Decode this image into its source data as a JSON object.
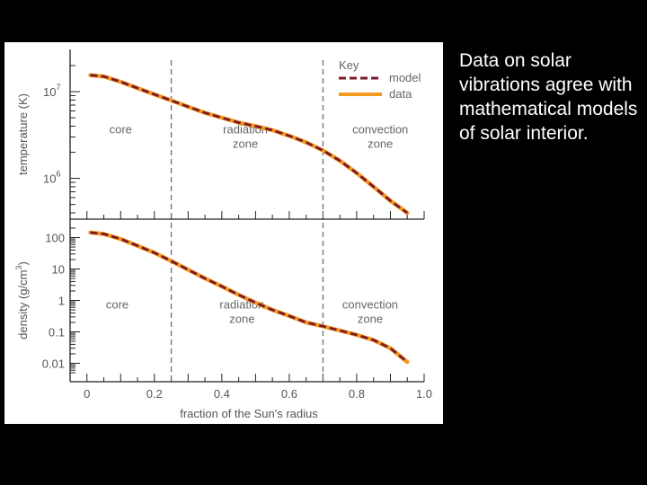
{
  "caption": "Data on solar vibrations agree with mathematical models of solar interior.",
  "colors": {
    "model": "#7a1a2c",
    "data": "#f39a1e",
    "zone_line": "#777777"
  },
  "chart_data": [
    {
      "type": "line",
      "panel": "temperature",
      "ylabel": "temperature (K)",
      "yscale": "log",
      "ylim": [
        400000,
        20000000
      ],
      "xlim": [
        -0.05,
        1.0
      ],
      "ytick_labels": [
        {
          "value": 10000000,
          "base": "10",
          "exp": "7"
        },
        {
          "value": 1000000,
          "base": "10",
          "exp": "6"
        }
      ],
      "zone_boundaries": [
        0.25,
        0.7
      ],
      "zones": [
        {
          "lines": [
            "core"
          ],
          "x": 0.1,
          "y": 3300000
        },
        {
          "lines": [
            "radiation",
            "zone"
          ],
          "x": 0.47,
          "y": 3300000
        },
        {
          "lines": [
            "convection",
            "zone"
          ],
          "x": 0.87,
          "y": 3300000
        }
      ],
      "legend": {
        "title": "Key",
        "entries": [
          "model",
          "data"
        ],
        "placement": "top-right"
      },
      "series": [
        {
          "name": "model",
          "x": [
            0.01,
            0.05,
            0.1,
            0.15,
            0.2,
            0.25,
            0.3,
            0.35,
            0.4,
            0.45,
            0.5,
            0.55,
            0.6,
            0.65,
            0.7,
            0.75,
            0.8,
            0.85,
            0.9,
            0.95
          ],
          "y": [
            15500000,
            15000000,
            13000000,
            11000000,
            9300000,
            7900000,
            6700000,
            5700000,
            5000000,
            4400000,
            4000000,
            3600000,
            3100000,
            2600000,
            2100000,
            1600000,
            1150000,
            800000,
            550000,
            400000
          ]
        },
        {
          "name": "data",
          "x": [
            0.01,
            0.05,
            0.1,
            0.15,
            0.2,
            0.25,
            0.3,
            0.35,
            0.4,
            0.45,
            0.5,
            0.55,
            0.6,
            0.65,
            0.7,
            0.75,
            0.8,
            0.85,
            0.9,
            0.95
          ],
          "y": [
            15500000,
            15000000,
            13000000,
            11000000,
            9300000,
            7900000,
            6700000,
            5700000,
            5000000,
            4400000,
            4000000,
            3600000,
            3100000,
            2600000,
            2100000,
            1600000,
            1150000,
            800000,
            550000,
            400000
          ]
        }
      ]
    },
    {
      "type": "line",
      "panel": "density",
      "ylabel": "density (g/cm",
      "ylabel_sup": "3",
      "ylabel_end": ")",
      "yscale": "log",
      "ylim": [
        0.005,
        200
      ],
      "xlim": [
        -0.05,
        1.0
      ],
      "xlabel": "fraction of the Sun's radius",
      "xticks": [
        0,
        0.2,
        0.4,
        0.6,
        0.8,
        1.0
      ],
      "xtick_labels": [
        "0",
        "0.2",
        "0.4",
        "0.6",
        "0.8",
        "1.0"
      ],
      "ytick_labels": [
        {
          "value": 100,
          "text": "100"
        },
        {
          "value": 10,
          "text": "10"
        },
        {
          "value": 1,
          "text": "1"
        },
        {
          "value": 0.1,
          "text": "0.1"
        },
        {
          "value": 0.01,
          "text": "0.01"
        }
      ],
      "zone_boundaries": [
        0.25,
        0.7
      ],
      "zones": [
        {
          "lines": [
            "core"
          ],
          "x": 0.09,
          "y": 0.55
        },
        {
          "lines": [
            "radiation",
            "zone"
          ],
          "x": 0.46,
          "y": 0.55
        },
        {
          "lines": [
            "convection",
            "zone"
          ],
          "x": 0.84,
          "y": 0.55
        }
      ],
      "series": [
        {
          "name": "model",
          "x": [
            0.01,
            0.05,
            0.1,
            0.15,
            0.2,
            0.25,
            0.3,
            0.35,
            0.4,
            0.45,
            0.5,
            0.55,
            0.6,
            0.65,
            0.7,
            0.75,
            0.8,
            0.85,
            0.9,
            0.95
          ],
          "y": [
            145,
            130,
            90,
            55,
            33,
            18,
            9.5,
            5,
            2.8,
            1.5,
            0.85,
            0.5,
            0.32,
            0.2,
            0.15,
            0.11,
            0.08,
            0.055,
            0.03,
            0.011
          ]
        },
        {
          "name": "data",
          "x": [
            0.01,
            0.05,
            0.1,
            0.15,
            0.2,
            0.25,
            0.3,
            0.35,
            0.4,
            0.45,
            0.5,
            0.55,
            0.6,
            0.65,
            0.7,
            0.75,
            0.8,
            0.85,
            0.9,
            0.95
          ],
          "y": [
            145,
            130,
            90,
            55,
            33,
            18,
            9.5,
            5,
            2.8,
            1.5,
            0.85,
            0.5,
            0.32,
            0.2,
            0.15,
            0.11,
            0.08,
            0.055,
            0.03,
            0.011
          ]
        }
      ]
    }
  ]
}
